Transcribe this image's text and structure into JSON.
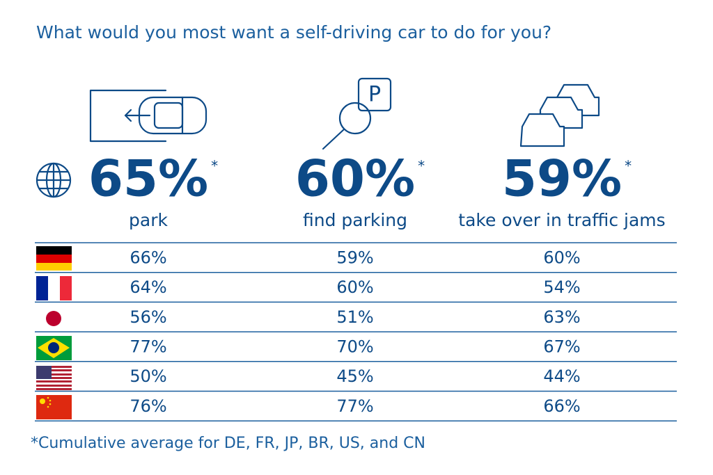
{
  "title": "What would you most want a self-driving car to do for you?",
  "columns": [
    {
      "headline": "65%",
      "asterisk": "*",
      "label": "park"
    },
    {
      "headline": "60%",
      "asterisk": "*",
      "label": "find parking"
    },
    {
      "headline": "59%",
      "asterisk": "*",
      "label": "take over in traffic jams"
    }
  ],
  "table": {
    "rows": [
      [
        "66%",
        "59%",
        "60%"
      ],
      [
        "64%",
        "60%",
        "54%"
      ],
      [
        "56%",
        "51%",
        "63%"
      ],
      [
        "77%",
        "70%",
        "67%"
      ],
      [
        "50%",
        "45%",
        "44%"
      ],
      [
        "76%",
        "77%",
        "66%"
      ]
    ]
  },
  "footnote": "*Cumulative average for DE, FR, JP, BR, US, and CN"
}
